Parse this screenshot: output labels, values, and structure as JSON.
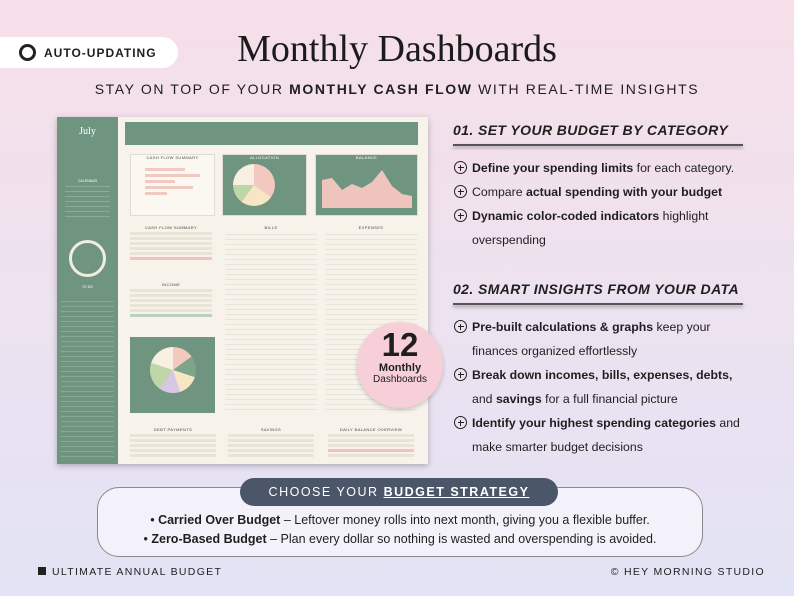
{
  "badge": "AUTO-UPDATING",
  "title": "Monthly Dashboards",
  "subtitle": [
    {
      "text": "STAY ON TOP OF YOUR ",
      "bold": false
    },
    {
      "text": "MONTHLY CASH FLOW",
      "bold": true
    },
    {
      "text": " WITH REAL-TIME INSIGHTS",
      "bold": false
    }
  ],
  "sheet": {
    "month": "July",
    "panels": [
      "CASH FLOW SUMMARY",
      "ALLOCATION",
      "BALANCE",
      "INCOME",
      "BILLS",
      "EXPENSES",
      "DEBT PAYMENTS",
      "SAVINGS",
      "DAILY BALANCE OVERVIEW"
    ],
    "sidebar": [
      "CALENDAR",
      "TO DO"
    ]
  },
  "sections": [
    {
      "heading": "01. SET YOUR BUDGET BY CATEGORY",
      "bullets": [
        [
          {
            "text": "Define your spending limits",
            "bold": true
          },
          {
            "text": " for each category.",
            "bold": false
          }
        ],
        [
          {
            "text": "Compare ",
            "bold": false
          },
          {
            "text": "actual spending with your budget",
            "bold": true
          }
        ],
        [
          {
            "text": "Dynamic color-coded indicators",
            "bold": true
          },
          {
            "text": " highlight overspending",
            "bold": false
          }
        ]
      ]
    },
    {
      "heading": "02. SMART INSIGHTS FROM YOUR DATA",
      "bullets": [
        [
          {
            "text": "Pre-built calculations & graphs",
            "bold": true
          },
          {
            "text": " keep your finances organized effortlessly",
            "bold": false
          }
        ],
        [
          {
            "text": "Break down incomes, bills, expenses, debts,",
            "bold": true
          },
          {
            "text": " and ",
            "bold": false
          },
          {
            "text": "savings",
            "bold": true
          },
          {
            "text": " for a full financial picture",
            "bold": false
          }
        ],
        [
          {
            "text": "Identify your highest spending categories",
            "bold": true
          },
          {
            "text": " and make smarter budget decisions",
            "bold": false
          }
        ]
      ]
    }
  ],
  "circle": {
    "number": "12",
    "line1": "Monthly",
    "line2": "Dashboards"
  },
  "strategy": {
    "header": "CHOOSE YOUR ",
    "header_link": "BUDGET STRATEGY",
    "items": [
      {
        "name": "Carried Over Budget",
        "text": " – Leftover money rolls into next month, giving you a flexible buffer."
      },
      {
        "name": "Zero-Based Budget",
        "text": " – Plan every dollar so nothing is wasted and overspending is avoided."
      }
    ]
  },
  "footer": {
    "left": "ULTIMATE ANNUAL BUDGET",
    "right": "© HEY MORNING STUDIO"
  }
}
